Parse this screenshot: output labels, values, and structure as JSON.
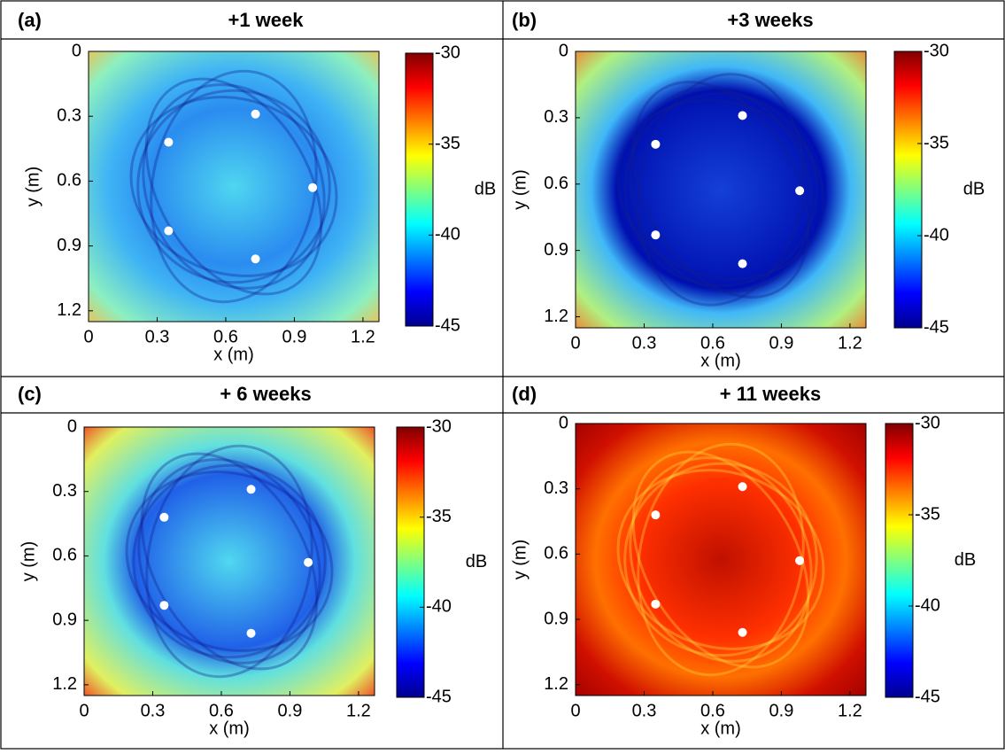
{
  "chart_data": [
    {
      "type": "heatmap",
      "panel_label": "(a)",
      "title": "+1 week",
      "xlabel": "x (m)",
      "ylabel": "y (m)",
      "xlim": [
        0,
        1.27
      ],
      "ylim": [
        0,
        1.25
      ],
      "xticks": [
        0,
        0.3,
        0.6,
        0.9,
        1.2
      ],
      "yticks": [
        0,
        0.3,
        0.6,
        0.9,
        1.2
      ],
      "colorbar": {
        "label": "dB",
        "lim": [
          -45,
          -30
        ],
        "ticks": [
          -30,
          -35,
          -40,
          -45
        ]
      },
      "points": {
        "color": "#ffffff",
        "x": [
          0.73,
          0.35,
          0.98,
          0.35,
          0.73
        ],
        "y": [
          0.29,
          0.42,
          0.63,
          0.83,
          0.96
        ]
      }
    },
    {
      "type": "heatmap",
      "panel_label": "(b)",
      "title": "+3 weeks",
      "xlabel": "x (m)",
      "ylabel": "y (m)",
      "xlim": [
        0,
        1.27
      ],
      "ylim": [
        0,
        1.25
      ],
      "xticks": [
        0,
        0.3,
        0.6,
        0.9,
        1.2
      ],
      "yticks": [
        0,
        0.3,
        0.6,
        0.9,
        1.2
      ],
      "colorbar": {
        "label": "dB",
        "lim": [
          -45,
          -30
        ],
        "ticks": [
          -30,
          -35,
          -40,
          -45
        ]
      },
      "points": {
        "color": "#ffffff",
        "x": [
          0.73,
          0.35,
          0.98,
          0.35,
          0.73
        ],
        "y": [
          0.29,
          0.42,
          0.63,
          0.83,
          0.96
        ]
      }
    },
    {
      "type": "heatmap",
      "panel_label": "(c)",
      "title": "+ 6 weeks",
      "xlabel": "x (m)",
      "ylabel": "y (m)",
      "xlim": [
        0,
        1.27
      ],
      "ylim": [
        0,
        1.25
      ],
      "xticks": [
        0,
        0.3,
        0.6,
        0.9,
        1.2
      ],
      "yticks": [
        0,
        0.3,
        0.6,
        0.9,
        1.2
      ],
      "colorbar": {
        "label": "dB",
        "lim": [
          -45,
          -30
        ],
        "ticks": [
          -30,
          -35,
          -40,
          -45
        ]
      },
      "points": {
        "color": "#ffffff",
        "x": [
          0.73,
          0.35,
          0.98,
          0.35,
          0.73
        ],
        "y": [
          0.29,
          0.42,
          0.63,
          0.83,
          0.96
        ]
      }
    },
    {
      "type": "heatmap",
      "panel_label": "(d)",
      "title": "+ 11 weeks",
      "xlabel": "x (m)",
      "ylabel": "y (m)",
      "xlim": [
        0,
        1.27
      ],
      "ylim": [
        0,
        1.25
      ],
      "xticks": [
        0,
        0.3,
        0.6,
        0.9,
        1.2
      ],
      "yticks": [
        0,
        0.3,
        0.6,
        0.9,
        1.2
      ],
      "colorbar": {
        "label": "dB",
        "lim": [
          -45,
          -30
        ],
        "ticks": [
          -30,
          -35,
          -40,
          -45
        ]
      },
      "points": {
        "color": "#ffffff",
        "x": [
          0.73,
          0.35,
          0.98,
          0.35,
          0.73
        ],
        "y": [
          0.29,
          0.42,
          0.63,
          0.83,
          0.96
        ]
      }
    }
  ]
}
